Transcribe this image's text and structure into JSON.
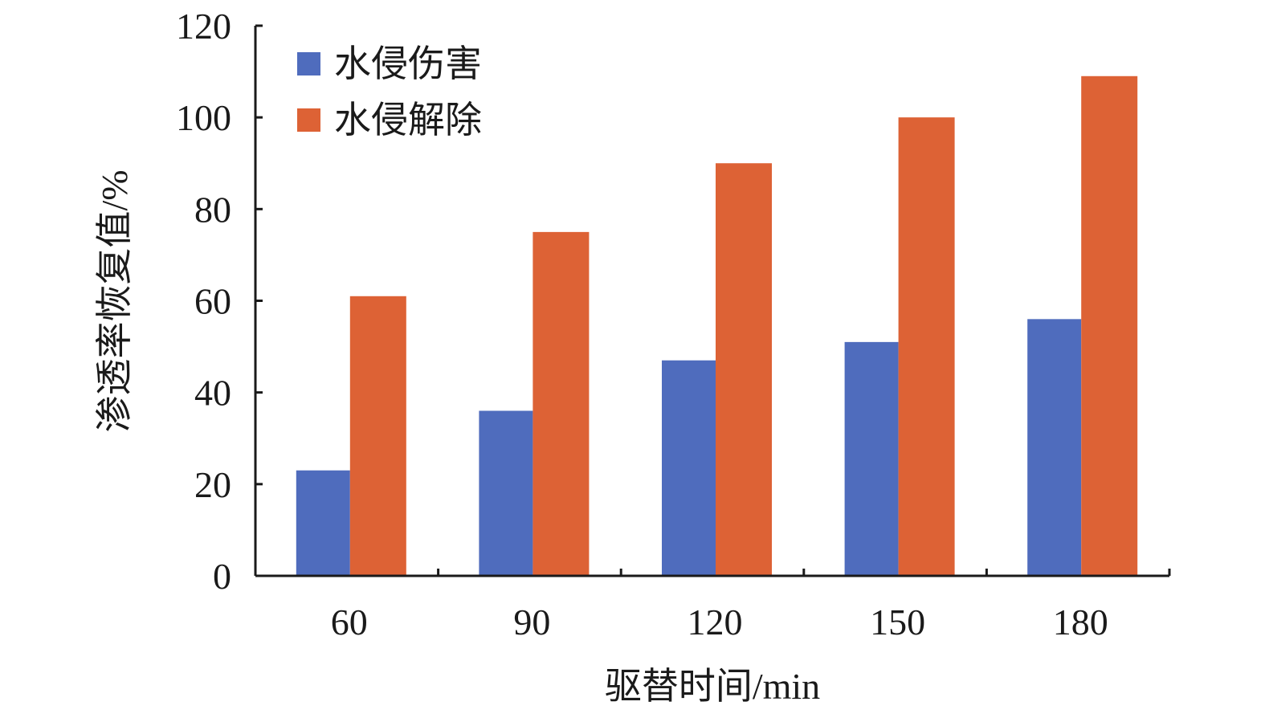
{
  "chart_data": {
    "type": "bar",
    "categories": [
      "60",
      "90",
      "120",
      "150",
      "180"
    ],
    "series": [
      {
        "name": "水侵伤害",
        "values": [
          23,
          36,
          47,
          51,
          56
        ],
        "color": "#4f6cbd"
      },
      {
        "name": "水侵解除",
        "values": [
          61,
          75,
          90,
          100,
          109
        ],
        "color": "#dd6235"
      }
    ],
    "xlabel": "驱替时间/min",
    "ylabel": "渗透率恢复值/%",
    "ylim": [
      0,
      120
    ],
    "yticks": [
      "0",
      "20",
      "40",
      "60",
      "80",
      "100",
      "120"
    ],
    "grid": false,
    "legend_position": "top-left"
  }
}
